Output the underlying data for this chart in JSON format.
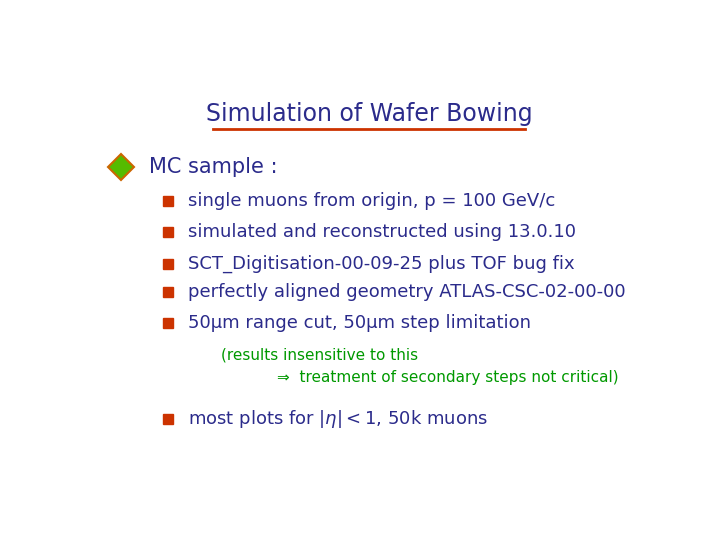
{
  "title": "Simulation of Wafer Bowing",
  "title_color": "#2b2b8b",
  "title_underline_color": "#cc3300",
  "bg_color": "#ffffff",
  "diamond_color_fill": "#55bb00",
  "diamond_color_edge": "#cc6600",
  "bullet_color": "#cc3300",
  "main_bullet_text": "MC sample :",
  "main_bullet_color": "#2b2b8b",
  "sub_bullets": [
    "single muons from origin, p = 100 GeV/c",
    "simulated and reconstructed using 13.0.10",
    "SCT_Digitisation-00-09-25 plus TOF bug fix",
    "perfectly aligned geometry ATLAS-CSC-02-00-00",
    "50μm range cut, 50μm step limitation"
  ],
  "sub_bullet_color": "#2b2b8b",
  "note_line1": "(results insensitive to this",
  "note_line2": "⇒  treatment of secondary steps not critical)",
  "note_color": "#009900",
  "last_bullet_text": "most plots for $|\\eta|<1$, 50k muons",
  "last_bullet_color": "#2b2b8b",
  "font_family": "DejaVu Sans"
}
